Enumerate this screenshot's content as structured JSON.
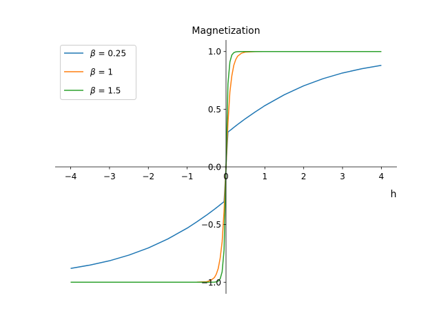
{
  "chart_data": {
    "type": "line",
    "title": "Magnetization",
    "xlabel": "h",
    "ylabel": "",
    "xlim": [
      -4.4,
      4.4
    ],
    "ylim": [
      -1.1,
      1.1
    ],
    "xticks": [
      -4,
      -3,
      -2,
      -1,
      0,
      1,
      2,
      3,
      4
    ],
    "xtick_labels": [
      "−4",
      "−3",
      "−2",
      "−1",
      "0",
      "1",
      "2",
      "3",
      "4"
    ],
    "yticks": [
      1.0,
      0.5,
      0.0,
      -0.5,
      -1.0
    ],
    "ytick_labels": [
      "1.0",
      "0.5",
      "0.0",
      "−0.5",
      "−1.0"
    ],
    "spines": "centered",
    "grid": false,
    "legend_position": "top-left",
    "x": [
      -4,
      -3.5,
      -3,
      -2.5,
      -2,
      -1.5,
      -1,
      -0.75,
      -0.5,
      -0.4,
      -0.3,
      -0.25,
      -0.2,
      -0.15,
      -0.1,
      -0.05,
      0,
      0.05,
      0.1,
      0.15,
      0.2,
      0.25,
      0.3,
      0.4,
      0.5,
      0.75,
      1,
      1.5,
      2,
      2.5,
      3,
      3.5,
      4
    ],
    "series": [
      {
        "name": "β = 0.25",
        "legend_symbol": "β",
        "legend_value": "= 0.25",
        "color": "#1f77b4",
        "values": [
          -0.88,
          -0.851,
          -0.814,
          -0.765,
          -0.703,
          -0.625,
          -0.531,
          -0.476,
          -0.418,
          -0.393,
          -0.368,
          -0.355,
          -0.342,
          -0.328,
          -0.315,
          -0.302,
          0.0,
          0.302,
          0.315,
          0.328,
          0.342,
          0.355,
          0.368,
          0.393,
          0.418,
          0.476,
          0.531,
          0.625,
          0.703,
          0.765,
          0.814,
          0.851,
          0.88
        ]
      },
      {
        "name": "β = 1",
        "legend_symbol": "β",
        "legend_value": "= 1",
        "color": "#ff7f0e",
        "values": [
          -1.0,
          -1.0,
          -1.0,
          -1.0,
          -1.0,
          -1.0,
          -1.0,
          -0.999,
          -0.995,
          -0.986,
          -0.96,
          -0.93,
          -0.88,
          -0.79,
          -0.65,
          -0.38,
          0.0,
          0.38,
          0.65,
          0.79,
          0.88,
          0.93,
          0.96,
          0.986,
          0.995,
          0.999,
          1.0,
          1.0,
          1.0,
          1.0,
          1.0,
          1.0,
          1.0
        ]
      },
      {
        "name": "β = 1.5",
        "legend_symbol": "β",
        "legend_value": "= 1.5",
        "color": "#2ca02c",
        "values": [
          -1.0,
          -1.0,
          -1.0,
          -1.0,
          -1.0,
          -1.0,
          -1.0,
          -1.0,
          -1.0,
          -1.0,
          -0.999,
          -0.997,
          -0.99,
          -0.97,
          -0.91,
          -0.72,
          0.0,
          0.72,
          0.91,
          0.97,
          0.99,
          0.997,
          0.999,
          1.0,
          1.0,
          1.0,
          1.0,
          1.0,
          1.0,
          1.0,
          1.0,
          1.0,
          1.0
        ]
      }
    ]
  }
}
